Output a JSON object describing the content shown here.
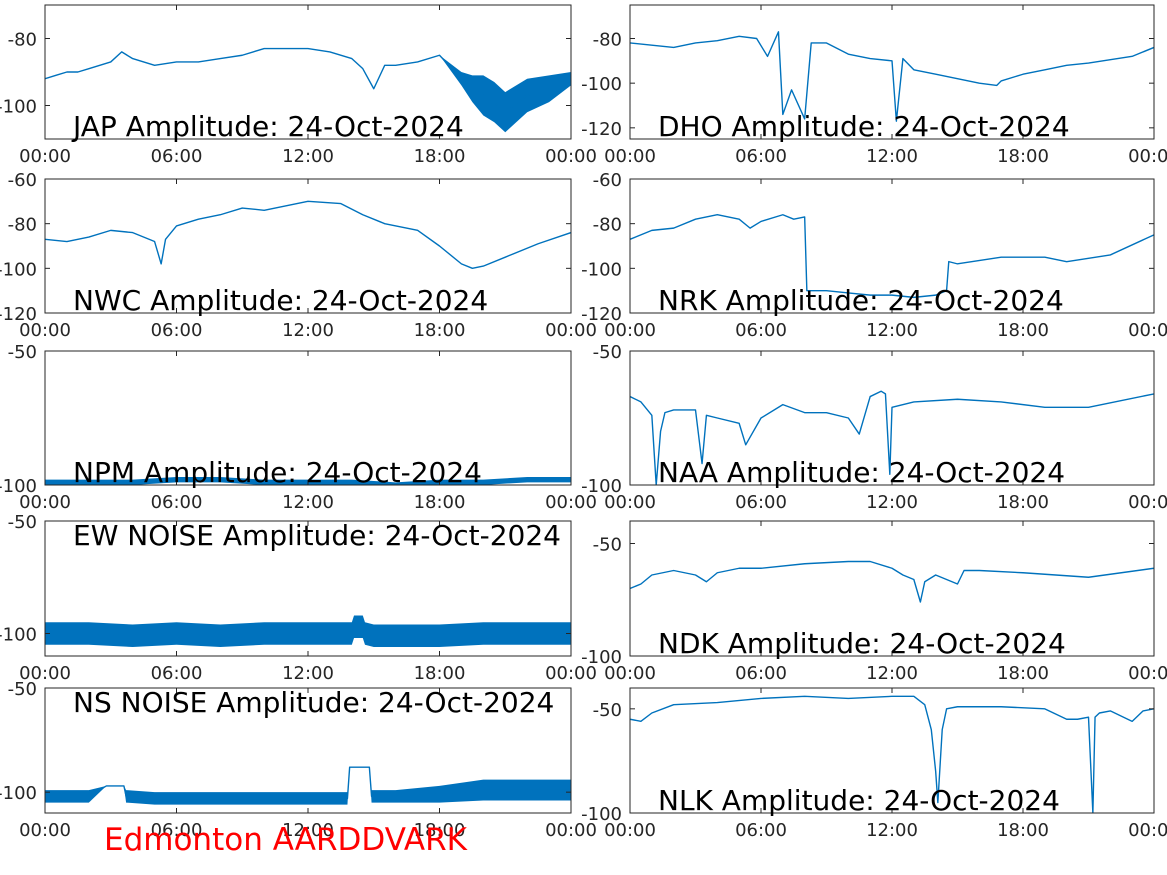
{
  "footer_label": "Edmonton AARDDVARK",
  "colors": {
    "line": "#0072bd",
    "axis": "#262626",
    "footer": "#ff0000"
  },
  "time_ticks": [
    "00:00",
    "06:00",
    "12:00",
    "18:00",
    "00:00"
  ],
  "chart_data": [
    {
      "type": "line",
      "title": "JAP Amplitude: 24-Oct-2024",
      "ylim": [
        -110,
        -70
      ],
      "yticks": [
        {
          "v": -80,
          "label": "-80"
        },
        {
          "v": -100,
          "label": "-100"
        }
      ],
      "xlim": [
        0,
        24
      ],
      "band": [
        0,
        0,
        0,
        0,
        0,
        0,
        0,
        0,
        0,
        0,
        0,
        0,
        0,
        0,
        0,
        0,
        0,
        0,
        0,
        0,
        0,
        0,
        0,
        0,
        0,
        0,
        2,
        4,
        6,
        6,
        6,
        5,
        4,
        2
      ],
      "x": [
        0,
        0.5,
        1,
        1.5,
        2,
        2.5,
        3,
        3.5,
        4,
        4.5,
        5,
        6,
        7,
        8,
        9,
        10,
        11,
        12,
        13,
        14,
        14.5,
        15,
        15.5,
        16,
        17,
        18,
        19,
        19.5,
        20,
        20.5,
        21,
        22,
        23,
        24
      ],
      "values": [
        -92,
        -91,
        -90,
        -90,
        -89,
        -88,
        -87,
        -84,
        -86,
        -87,
        -88,
        -87,
        -87,
        -86,
        -85,
        -83,
        -83,
        -83,
        -84,
        -86,
        -89,
        -95,
        -88,
        -88,
        -87,
        -85,
        -92,
        -95,
        -97,
        -99,
        -102,
        -97,
        -95,
        -92
      ]
    },
    {
      "type": "line",
      "title": "DHO Amplitude: 24-Oct-2024",
      "ylim": [
        -125,
        -65
      ],
      "yticks": [
        {
          "v": -80,
          "label": "-80"
        },
        {
          "v": -100,
          "label": "-100"
        },
        {
          "v": -120,
          "label": "-120"
        }
      ],
      "xlim": [
        0,
        24
      ],
      "band": [
        0,
        0,
        0,
        0,
        0,
        0,
        0,
        0,
        0,
        0,
        0,
        0,
        0,
        0,
        0,
        0,
        0,
        0,
        0,
        0,
        0,
        0,
        0,
        0,
        0,
        0,
        0,
        0,
        0,
        0,
        0
      ],
      "x": [
        0,
        1,
        2,
        3,
        4,
        5,
        5.8,
        6.3,
        6.8,
        7,
        7.4,
        8,
        8.3,
        9,
        10,
        11,
        12,
        12.2,
        12.5,
        13,
        14,
        15,
        16,
        16.8,
        17,
        18,
        19,
        20,
        21,
        23,
        24
      ],
      "values": [
        -82,
        -83,
        -84,
        -82,
        -81,
        -79,
        -80,
        -88,
        -77,
        -114,
        -103,
        -116,
        -82,
        -82,
        -87,
        -89,
        -90,
        -117,
        -89,
        -94,
        -96,
        -98,
        -100,
        -101,
        -99,
        -96,
        -94,
        -92,
        -91,
        -88,
        -84
      ]
    },
    {
      "type": "line",
      "title": "NWC Amplitude: 24-Oct-2024",
      "ylim": [
        -120,
        -60
      ],
      "yticks": [
        {
          "v": -60,
          "label": "-60"
        },
        {
          "v": -80,
          "label": "-80"
        },
        {
          "v": -100,
          "label": "-100"
        },
        {
          "v": -120,
          "label": "-120"
        }
      ],
      "xlim": [
        0,
        24
      ],
      "band": [
        0,
        0,
        0,
        0,
        0,
        0,
        0,
        0,
        0,
        0,
        0,
        0,
        0,
        0,
        0,
        0,
        0,
        0,
        0,
        0,
        0,
        0,
        0,
        0,
        0
      ],
      "x": [
        0,
        1,
        2,
        3,
        4,
        5,
        5.3,
        5.5,
        6,
        7,
        8,
        9,
        10,
        12,
        13.5,
        14.5,
        15.5,
        17,
        18,
        19,
        19.5,
        20,
        21,
        22.5,
        24
      ],
      "values": [
        -87,
        -88,
        -86,
        -83,
        -84,
        -88,
        -98,
        -87,
        -81,
        -78,
        -76,
        -73,
        -74,
        -70,
        -71,
        -76,
        -80,
        -83,
        -90,
        -98,
        -100,
        -99,
        -95,
        -89,
        -84
      ]
    },
    {
      "type": "line",
      "title": "NRK Amplitude: 24-Oct-2024",
      "ylim": [
        -120,
        -60
      ],
      "yticks": [
        {
          "v": -60,
          "label": "-60"
        },
        {
          "v": -80,
          "label": "-80"
        },
        {
          "v": -100,
          "label": "-100"
        },
        {
          "v": -120,
          "label": "-120"
        }
      ],
      "xlim": [
        0,
        24
      ],
      "band": [
        0,
        0,
        0,
        0,
        0,
        0,
        0,
        0,
        0,
        0,
        0,
        0,
        0,
        0,
        0,
        0,
        0,
        0,
        0,
        0,
        0,
        0,
        0,
        0,
        0,
        0
      ],
      "x": [
        0,
        1,
        2,
        3,
        4,
        5,
        5.5,
        6,
        7,
        7.5,
        8,
        8.1,
        9,
        10,
        11,
        12,
        13,
        14,
        14.5,
        14.6,
        15,
        17,
        19,
        20,
        22,
        24
      ],
      "values": [
        -87,
        -83,
        -82,
        -78,
        -76,
        -78,
        -82,
        -79,
        -76,
        -78,
        -77,
        -110,
        -110,
        -111,
        -112,
        -112,
        -113,
        -112,
        -110,
        -97,
        -98,
        -95,
        -95,
        -97,
        -94,
        -85
      ]
    },
    {
      "type": "line",
      "title": "NPM Amplitude: 24-Oct-2024",
      "ylim": [
        -100,
        -50
      ],
      "yticks": [
        {
          "v": -50,
          "label": "-50"
        },
        {
          "v": -100,
          "label": "-100"
        }
      ],
      "xlim": [
        0,
        24
      ],
      "band": [
        1,
        1,
        1,
        1,
        1,
        1,
        1,
        1,
        1,
        1,
        1,
        1,
        1
      ],
      "x": [
        0,
        2,
        4,
        6,
        8,
        10,
        12,
        14,
        16,
        18,
        20,
        22,
        24
      ],
      "values": [
        -99,
        -99,
        -99,
        -98,
        -98,
        -99,
        -99,
        -99,
        -100,
        -99,
        -99,
        -98,
        -98
      ]
    },
    {
      "type": "line",
      "title": "NAA Amplitude: 24-Oct-2024",
      "ylim": [
        -100,
        -50
      ],
      "yticks": [
        {
          "v": -50,
          "label": "-50"
        },
        {
          "v": -100,
          "label": "-100"
        }
      ],
      "xlim": [
        0,
        24
      ],
      "band": [
        0,
        0,
        0,
        0,
        0,
        0,
        0,
        0,
        0,
        0,
        0,
        0,
        0,
        0,
        0,
        0,
        0,
        0,
        0,
        0,
        0,
        0,
        0,
        0,
        0,
        0,
        0,
        0,
        0,
        0
      ],
      "x": [
        0,
        0.5,
        1,
        1.2,
        1.4,
        1.6,
        2,
        3,
        3.3,
        3.5,
        4,
        5,
        5.3,
        6,
        7,
        8,
        9,
        10,
        10.5,
        11,
        11.5,
        11.7,
        11.9,
        12,
        13,
        15,
        17,
        19,
        21,
        24
      ],
      "values": [
        -67,
        -69,
        -74,
        -100,
        -80,
        -73,
        -72,
        -72,
        -92,
        -74,
        -75,
        -77,
        -85,
        -75,
        -70,
        -73,
        -73,
        -75,
        -81,
        -67,
        -65,
        -66,
        -96,
        -71,
        -69,
        -68,
        -69,
        -71,
        -71,
        -66
      ]
    },
    {
      "type": "line",
      "title": "EW NOISE Amplitude: 24-Oct-2024",
      "ylim": [
        -110,
        -50
      ],
      "yticks": [
        {
          "v": -50,
          "label": "-50"
        },
        {
          "v": -100,
          "label": "-100"
        }
      ],
      "xlim": [
        0,
        24
      ],
      "band": [
        5,
        5,
        5,
        5,
        5,
        5,
        5,
        5,
        5,
        5,
        5,
        5,
        5,
        5,
        5,
        5,
        5,
        5,
        5
      ],
      "x": [
        0,
        2,
        4,
        6,
        8,
        10,
        12,
        13.5,
        14,
        14.1,
        14.5,
        14.6,
        15,
        16,
        18,
        20,
        21,
        22,
        24
      ],
      "values": [
        -100,
        -100,
        -101,
        -100,
        -101,
        -100,
        -100,
        -100,
        -100,
        -97,
        -97,
        -100,
        -101,
        -101,
        -101,
        -100,
        -100,
        -100,
        -100
      ]
    },
    {
      "type": "line",
      "title": "NDK Amplitude: 24-Oct-2024",
      "ylim": [
        -100,
        -40
      ],
      "yticks": [
        {
          "v": -50,
          "label": "-50"
        },
        {
          "v": -100,
          "label": "-100"
        }
      ],
      "xlim": [
        0,
        24
      ],
      "band": [
        0,
        0,
        0,
        0,
        0,
        0,
        0,
        0,
        0,
        0,
        0,
        0,
        0,
        0,
        0,
        0,
        0,
        0,
        0,
        0,
        0,
        0,
        0,
        0
      ],
      "x": [
        0,
        0.5,
        1,
        2,
        3,
        3.5,
        4,
        5,
        6,
        8,
        10,
        11,
        12,
        12.5,
        13,
        13.3,
        13.5,
        14,
        15,
        15.3,
        16,
        18,
        21,
        24
      ],
      "values": [
        -70,
        -68,
        -64,
        -62,
        -64,
        -67,
        -63,
        -61,
        -61,
        -59,
        -58,
        -58,
        -61,
        -64,
        -66,
        -76,
        -67,
        -64,
        -68,
        -62,
        -62,
        -63,
        -65,
        -61
      ]
    },
    {
      "type": "line",
      "title": "NS NOISE Amplitude: 24-Oct-2024",
      "ylim": [
        -110,
        -50
      ],
      "yticks": [
        {
          "v": -50,
          "label": "-50"
        },
        {
          "v": -100,
          "label": "-100"
        }
      ],
      "xlim": [
        0,
        24
      ],
      "band": [
        3,
        3,
        3,
        0,
        0,
        3,
        3,
        3,
        3,
        3,
        3,
        0,
        0,
        3,
        3,
        4,
        5,
        5,
        5
      ],
      "x": [
        0,
        1,
        2,
        2.8,
        3.6,
        3.7,
        5,
        7,
        9,
        11,
        13.8,
        13.9,
        14.8,
        14.9,
        16,
        18,
        20,
        22,
        24
      ],
      "values": [
        -102,
        -102,
        -102,
        -97,
        -97,
        -102,
        -103,
        -103,
        -103,
        -103,
        -103,
        -88,
        -88,
        -102,
        -102,
        -101,
        -99,
        -99,
        -99
      ]
    },
    {
      "type": "line",
      "title": "NLK Amplitude: 24-Oct-2024",
      "ylim": [
        -100,
        -40
      ],
      "yticks": [
        {
          "v": -50,
          "label": "-50"
        },
        {
          "v": -100,
          "label": "-100"
        }
      ],
      "xlim": [
        0,
        24
      ],
      "band": [
        0,
        0,
        0,
        0,
        0,
        0,
        0,
        0,
        0,
        0,
        0,
        0,
        0,
        0,
        0,
        0,
        0,
        0,
        0,
        0,
        0,
        0,
        0,
        0,
        0,
        0,
        0,
        0,
        0
      ],
      "x": [
        0,
        0.5,
        1,
        2,
        4,
        6,
        8,
        10,
        12,
        13,
        13.5,
        13.8,
        14,
        14.1,
        14.3,
        14.5,
        15,
        17,
        19,
        20,
        20.5,
        21,
        21.2,
        21.3,
        21.5,
        22,
        23,
        23.5,
        24
      ],
      "values": [
        -55,
        -56,
        -52,
        -48,
        -47,
        -45,
        -44,
        -45,
        -44,
        -44,
        -48,
        -60,
        -80,
        -95,
        -60,
        -50,
        -49,
        -49,
        -50,
        -55,
        -55,
        -54,
        -100,
        -54,
        -52,
        -51,
        -56,
        -51,
        -50
      ]
    }
  ]
}
